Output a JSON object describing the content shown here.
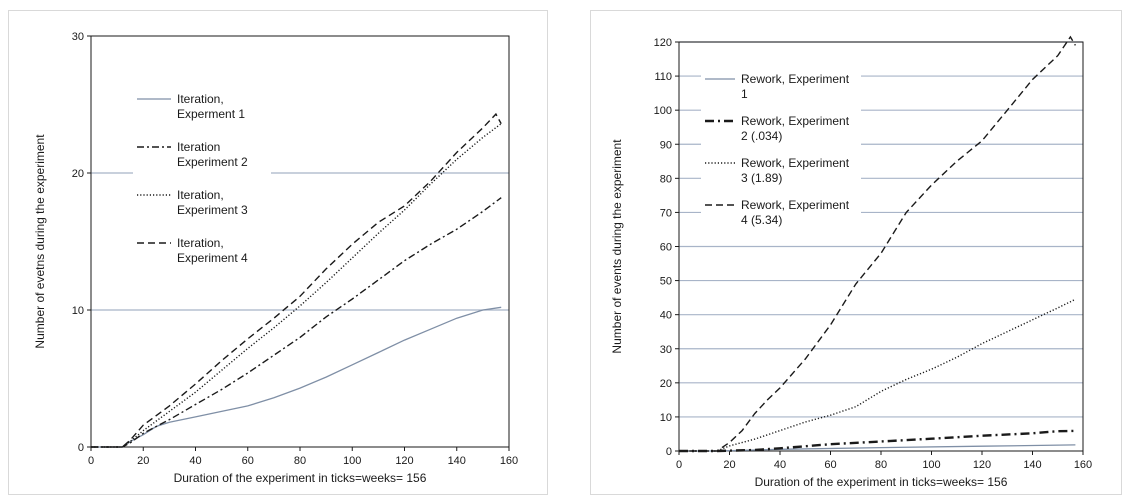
{
  "chart_data": [
    {
      "type": "line",
      "xlabel": "Duration of the experiment in ticks=weeks= 156",
      "ylabel": "Number of evetns during the experiment",
      "xlim": [
        0,
        160
      ],
      "ylim": [
        0,
        30
      ],
      "xticks": [
        "0",
        "20",
        "40",
        "60",
        "80",
        "100",
        "120",
        "140",
        "160"
      ],
      "yticks": [
        "0",
        "10",
        "20",
        "30"
      ],
      "grid": "horizontal lines at 10 and 20",
      "legend": "upper-left, inside plot",
      "series": [
        {
          "name": "Iteration, Experment 1",
          "style": "solid",
          "color": "#7f8fa6",
          "points": [
            [
              0,
              0
            ],
            [
              12,
              0
            ],
            [
              15,
              0.4
            ],
            [
              20,
              0.9
            ],
            [
              25,
              1.5
            ],
            [
              30,
              1.8
            ],
            [
              40,
              2.2
            ],
            [
              50,
              2.6
            ],
            [
              60,
              3.0
            ],
            [
              70,
              3.6
            ],
            [
              80,
              4.3
            ],
            [
              90,
              5.1
            ],
            [
              100,
              6.0
            ],
            [
              110,
              6.9
            ],
            [
              120,
              7.8
            ],
            [
              130,
              8.6
            ],
            [
              140,
              9.4
            ],
            [
              150,
              10.0
            ],
            [
              157,
              10.2
            ]
          ]
        },
        {
          "name": "Iteration Experiment 2",
          "style": "dashdot",
          "color": "#1a1a1a",
          "points": [
            [
              0,
              0
            ],
            [
              12,
              0
            ],
            [
              15,
              0.3
            ],
            [
              20,
              1.0
            ],
            [
              30,
              2.0
            ],
            [
              40,
              3.1
            ],
            [
              50,
              4.2
            ],
            [
              60,
              5.4
            ],
            [
              70,
              6.7
            ],
            [
              80,
              8.0
            ],
            [
              90,
              9.5
            ],
            [
              100,
              10.8
            ],
            [
              110,
              12.2
            ],
            [
              120,
              13.6
            ],
            [
              130,
              14.8
            ],
            [
              140,
              15.9
            ],
            [
              150,
              17.2
            ],
            [
              157,
              18.2
            ]
          ]
        },
        {
          "name": "Iteration, Experiment 3",
          "style": "dotted",
          "color": "#1a1a1a",
          "points": [
            [
              0,
              0
            ],
            [
              12,
              0
            ],
            [
              15,
              0.4
            ],
            [
              20,
              1.2
            ],
            [
              30,
              2.6
            ],
            [
              40,
              4.0
            ],
            [
              50,
              5.6
            ],
            [
              60,
              7.2
            ],
            [
              70,
              8.7
            ],
            [
              80,
              10.3
            ],
            [
              90,
              12.0
            ],
            [
              100,
              13.8
            ],
            [
              110,
              15.6
            ],
            [
              120,
              17.3
            ],
            [
              130,
              19.2
            ],
            [
              140,
              21.0
            ],
            [
              150,
              22.6
            ],
            [
              157,
              23.6
            ]
          ]
        },
        {
          "name": "Iteration, Experiment 4",
          "style": "dashed",
          "color": "#1a1a1a",
          "points": [
            [
              0,
              0
            ],
            [
              12,
              0
            ],
            [
              15,
              0.5
            ],
            [
              20,
              1.6
            ],
            [
              30,
              3.0
            ],
            [
              40,
              4.6
            ],
            [
              50,
              6.3
            ],
            [
              60,
              7.9
            ],
            [
              70,
              9.4
            ],
            [
              80,
              11.0
            ],
            [
              90,
              13.0
            ],
            [
              100,
              14.8
            ],
            [
              110,
              16.4
            ],
            [
              120,
              17.6
            ],
            [
              130,
              19.4
            ],
            [
              140,
              21.5
            ],
            [
              150,
              23.3
            ],
            [
              155,
              24.3
            ],
            [
              157,
              23.6
            ]
          ]
        }
      ]
    },
    {
      "type": "line",
      "xlabel": "Duration of the experiment in ticks=weeks= 156",
      "ylabel": "Number of events during the experiment",
      "xlim": [
        0,
        160
      ],
      "ylim": [
        0,
        120
      ],
      "xticks": [
        "0",
        "20",
        "40",
        "60",
        "80",
        "100",
        "120",
        "140",
        "160"
      ],
      "yticks": [
        "0",
        "10",
        "20",
        "30",
        "40",
        "50",
        "60",
        "70",
        "80",
        "90",
        "100",
        "110",
        "120"
      ],
      "grid": "horizontal lines every 10",
      "legend": "upper-left, inside plot",
      "series": [
        {
          "name": "Rework, Experiment 1",
          "style": "solid",
          "color": "#7f8fa6",
          "points": [
            [
              0,
              0
            ],
            [
              15,
              0
            ],
            [
              40,
              0.5
            ],
            [
              80,
              1.0
            ],
            [
              120,
              1.4
            ],
            [
              157,
              1.8
            ]
          ]
        },
        {
          "name": "Rework, Experiment 2 (.034)",
          "style": "dashdot-bold",
          "color": "#1a1a1a",
          "points": [
            [
              0,
              0
            ],
            [
              15,
              0
            ],
            [
              30,
              0.3
            ],
            [
              40,
              0.8
            ],
            [
              60,
              2.0
            ],
            [
              80,
              2.8
            ],
            [
              100,
              3.6
            ],
            [
              120,
              4.5
            ],
            [
              140,
              5.2
            ],
            [
              150,
              5.8
            ],
            [
              157,
              5.9
            ]
          ]
        },
        {
          "name": "Rework, Experiment 3 (1.89)",
          "style": "dotted",
          "color": "#1a1a1a",
          "points": [
            [
              0,
              0
            ],
            [
              15,
              0
            ],
            [
              20,
              1.5
            ],
            [
              30,
              3.5
            ],
            [
              40,
              6.0
            ],
            [
              50,
              8.5
            ],
            [
              60,
              10.5
            ],
            [
              70,
              13.0
            ],
            [
              80,
              17.5
            ],
            [
              90,
              21.0
            ],
            [
              100,
              24.0
            ],
            [
              110,
              27.5
            ],
            [
              120,
              31.5
            ],
            [
              130,
              35.0
            ],
            [
              140,
              38.5
            ],
            [
              150,
              42.0
            ],
            [
              157,
              44.5
            ]
          ]
        },
        {
          "name": "Rework, Experiment 4 (5.34)",
          "style": "dashed",
          "color": "#1a1a1a",
          "points": [
            [
              0,
              0
            ],
            [
              15,
              0
            ],
            [
              20,
              2.5
            ],
            [
              25,
              6.0
            ],
            [
              30,
              11.0
            ],
            [
              35,
              15.0
            ],
            [
              40,
              18.5
            ],
            [
              50,
              27.0
            ],
            [
              60,
              37.0
            ],
            [
              70,
              49.0
            ],
            [
              80,
              58.0
            ],
            [
              90,
              70.0
            ],
            [
              100,
              78.0
            ],
            [
              110,
              85.0
            ],
            [
              120,
              91.0
            ],
            [
              130,
              100.0
            ],
            [
              140,
              109.0
            ],
            [
              150,
              116.0
            ],
            [
              155,
              121.5
            ],
            [
              157,
              119.0
            ]
          ]
        }
      ]
    }
  ]
}
